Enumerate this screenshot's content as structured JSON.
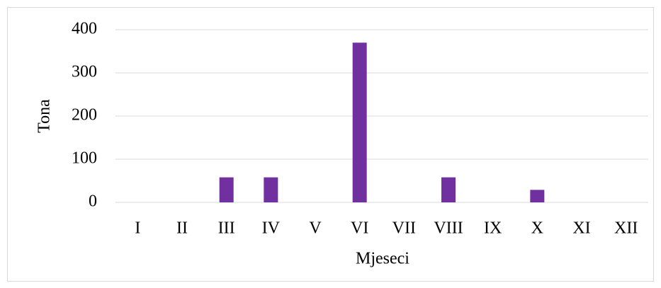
{
  "chart_data": {
    "type": "bar",
    "categories": [
      "I",
      "II",
      "III",
      "IV",
      "V",
      "VI",
      "VII",
      "VIII",
      "IX",
      "X",
      "XI",
      "XII"
    ],
    "values": [
      0,
      0,
      58,
      58,
      0,
      370,
      0,
      58,
      0,
      29,
      0,
      0
    ],
    "color": "#7030a0",
    "ylim": [
      0,
      400
    ],
    "yticks": [
      0,
      100,
      200,
      300,
      400
    ],
    "grid": true,
    "x_label": "Mjeseci",
    "y_label": "Tona"
  }
}
